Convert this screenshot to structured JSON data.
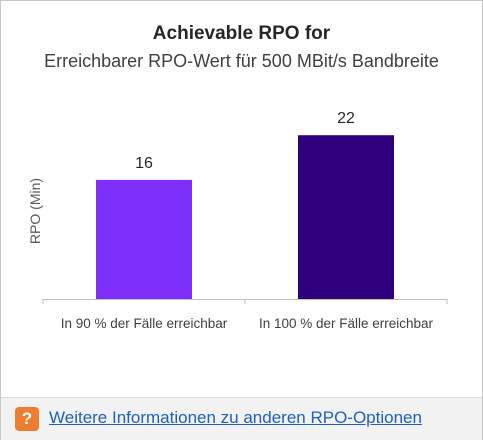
{
  "chart_data": {
    "type": "bar",
    "title": "Achievable RPO for",
    "subtitle": "Erreichbarer RPO-Wert für 500 MBit/s Bandbreite",
    "ylabel": "RPO (Min)",
    "xlabel": "",
    "categories": [
      "In 90 % der Fälle erreichbar",
      "In 100 % der Fälle erreichbar"
    ],
    "values": [
      16,
      22
    ],
    "data_labels": [
      "16",
      "22"
    ],
    "colors": [
      "#7f2ffa",
      "#2e007e"
    ],
    "ylim": [
      0,
      27
    ],
    "grid": false,
    "legend": "none"
  },
  "footer": {
    "icon": "question-mark-icon",
    "icon_glyph": "?",
    "icon_color": "#ed7d31",
    "link_text": "Weitere Informationen zu anderen RPO-Optionen",
    "link_color": "#1f5fbf"
  }
}
